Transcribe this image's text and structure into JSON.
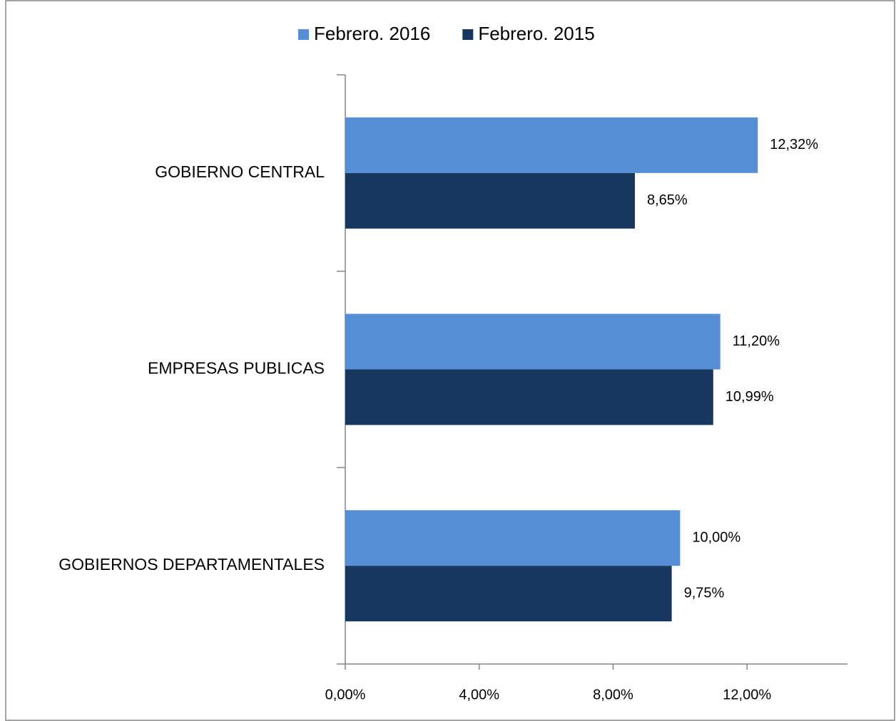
{
  "chart_data": {
    "type": "barh",
    "categories": [
      "GOBIERNO CENTRAL",
      "EMPRESAS PUBLICAS",
      "GOBIERNOS DEPARTAMENTALES"
    ],
    "series": [
      {
        "name": "Febrero. 2016",
        "color": "#558ed5",
        "values": [
          12.32,
          11.2,
          10
        ],
        "value_labels": [
          "12,32%",
          "11,20%",
          "10,00%"
        ]
      },
      {
        "name": "Febrero. 2015",
        "color": "#17375e",
        "values": [
          8.65,
          10.99,
          9.75
        ],
        "value_labels": [
          "8,65%",
          "10,99%",
          "9,75%"
        ]
      }
    ],
    "xlim": [
      0,
      15
    ],
    "xticks": [
      {
        "value": 0,
        "label": "0,00%"
      },
      {
        "value": 4,
        "label": "4,00%"
      },
      {
        "value": 8,
        "label": "8,00%"
      },
      {
        "value": 12,
        "label": "12,00%"
      }
    ],
    "legend": "top"
  }
}
